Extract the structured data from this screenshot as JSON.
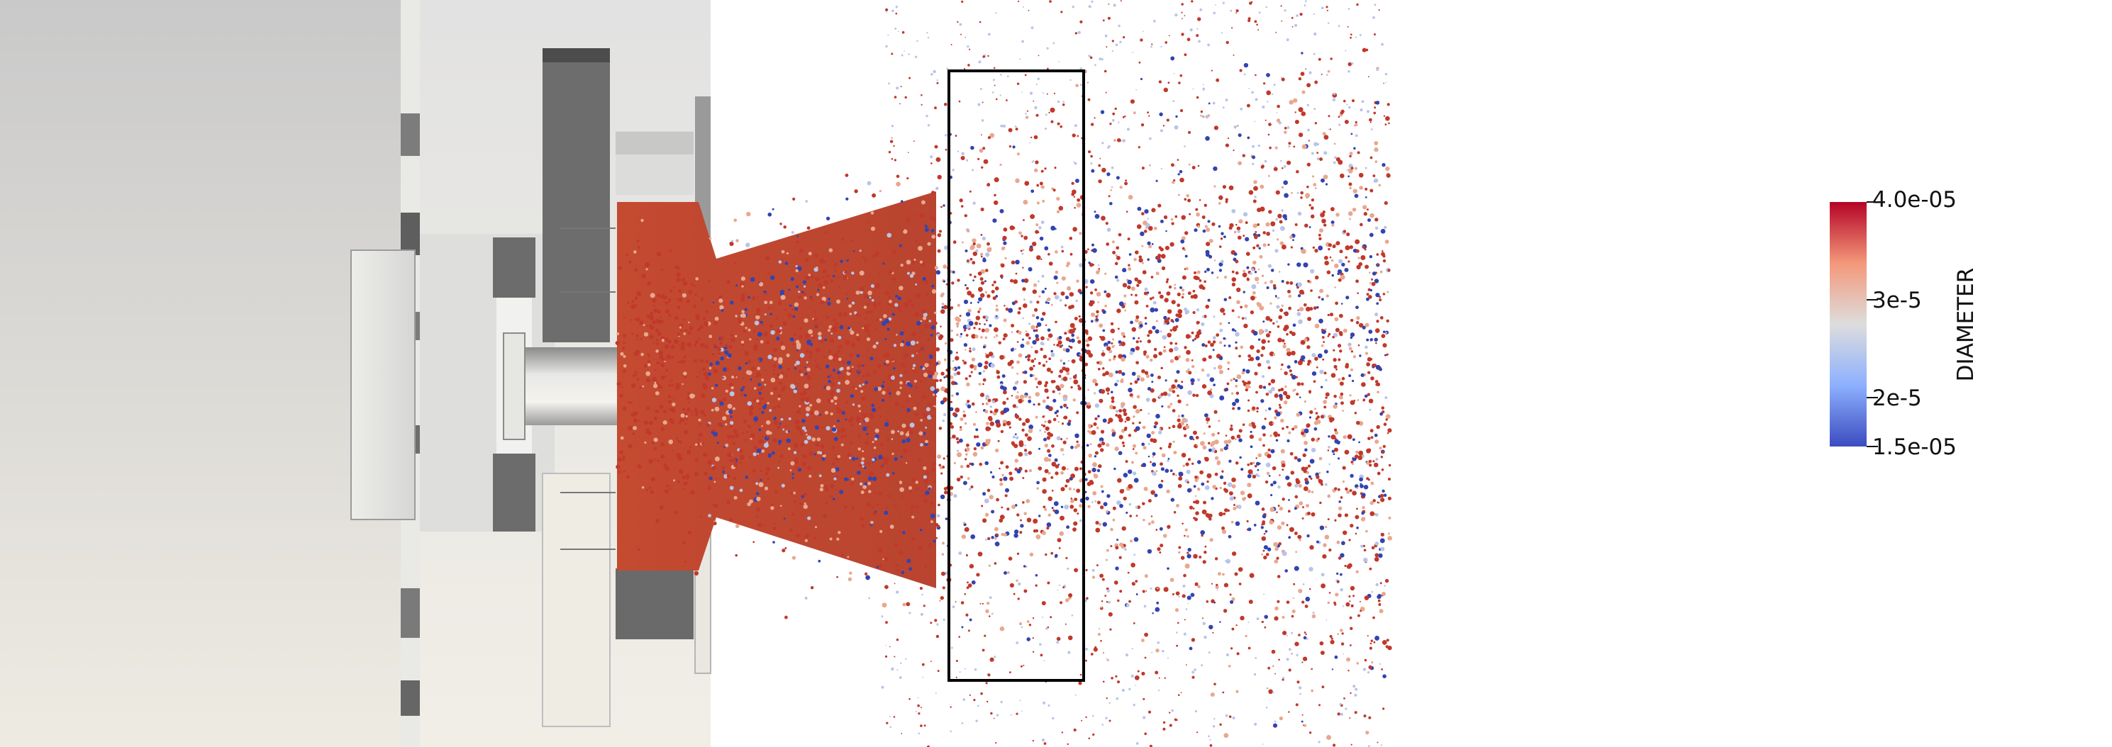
{
  "colorbar": {
    "title": "DIAMETER",
    "max_label": "4.0e-05",
    "tick_high_label": "3e-5",
    "tick_low_label": "2e-5",
    "min_label": "1.5e-05",
    "range": [
      1.5e-05,
      4e-05
    ],
    "ticks": [
      1.5e-05,
      2e-05,
      3e-05,
      4e-05
    ],
    "colormap": [
      "#3b4cc0",
      "#8db0fe",
      "#dddddd",
      "#f4987a",
      "#b40426"
    ]
  },
  "scene": {
    "background": "#ffffff",
    "geometry_shades": [
      "#f1efe7",
      "#d8d8d8",
      "#9a9a9a",
      "#6d6d6d",
      "#4d4d4d"
    ],
    "particle_colors": {
      "large": "#c0392b",
      "medium": "#e8a88f",
      "small": "#3344b0",
      "tiny": "#b8c4e8"
    }
  }
}
